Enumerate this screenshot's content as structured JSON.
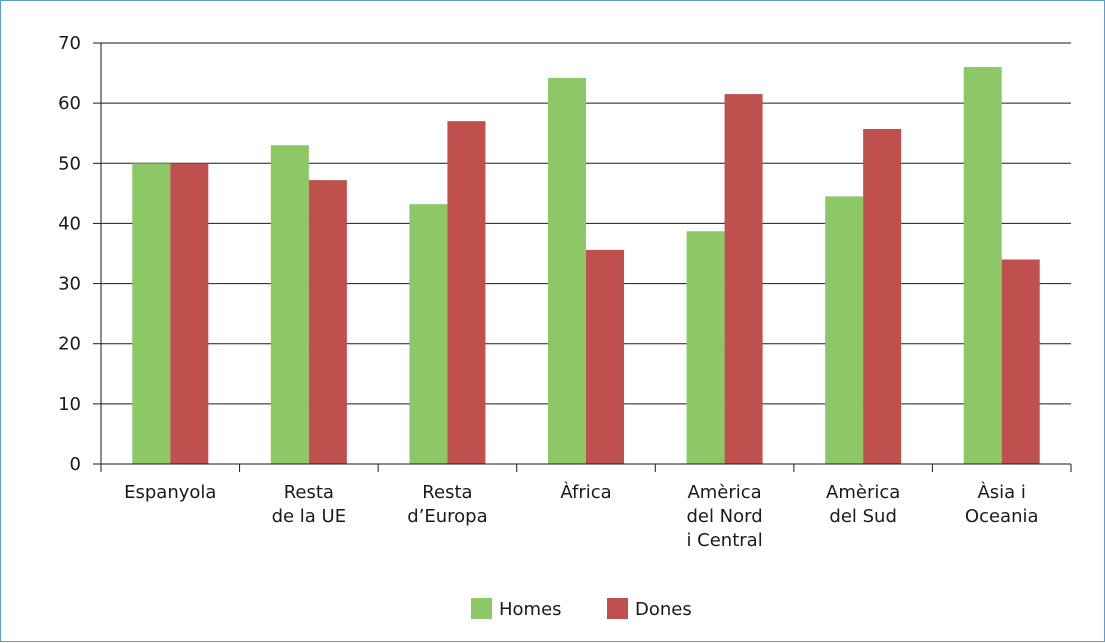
{
  "chart_data": {
    "type": "bar",
    "categories": [
      [
        "Espanyola"
      ],
      [
        "Resta",
        "de la UE"
      ],
      [
        "Resta",
        "d’Europa"
      ],
      [
        "Àfrica"
      ],
      [
        "Amèrica",
        "del Nord",
        "i Central"
      ],
      [
        "Amèrica",
        "del Sud"
      ],
      [
        "Àsia i",
        "Oceania"
      ]
    ],
    "series": [
      {
        "name": "Homes",
        "color": "#8cc866",
        "values": [
          50,
          53,
          43.2,
          64.2,
          38.7,
          44.5,
          66
        ]
      },
      {
        "name": "Dones",
        "color": "#c0504d",
        "values": [
          50,
          47.2,
          57,
          35.6,
          61.5,
          55.7,
          34
        ]
      }
    ],
    "ylim": [
      0,
      70
    ],
    "yticks": [
      0,
      10,
      20,
      30,
      40,
      50,
      60,
      70
    ],
    "grid": true,
    "legend_position": "bottom"
  }
}
